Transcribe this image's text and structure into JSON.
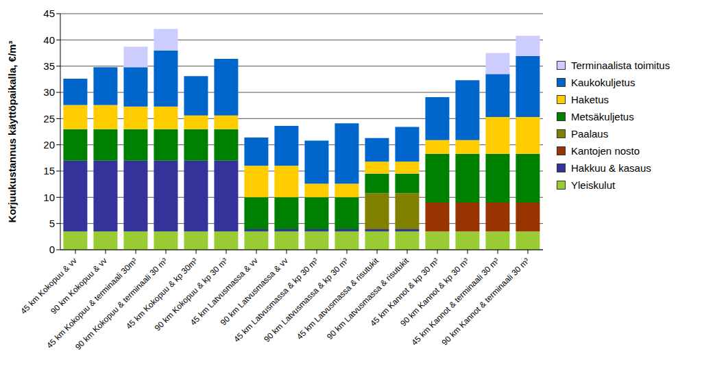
{
  "chart_data": {
    "type": "bar",
    "stacked": true,
    "grid": true,
    "legend": "right",
    "y_label": "Korjuukustannus käyttöpaikalla, €/m³",
    "categories": [
      "45 km Kokopuu & vv",
      "90 km Kokopuu & vv",
      "45 km Kokopuu & terminaali 30m³",
      "90 km Kokopuu & terminaali 30 m³",
      "45 km Kokopuu & kp 30m³",
      "90 km Kokopuu & kp 30 m³",
      "45 km Latvusmassa & vv",
      "90 km Latvusmassa & vv",
      "45 km Latvusmassa & kp 30 m³",
      "90 km Latvusmassa & kp 30 m³",
      "45 km Latvusmassa & risutukit",
      "90 km Latvusmassa & risutukit",
      "45 km Kannot & kp 30 m³",
      "90 km Kannot & kp 30 m³",
      "45 km Kannot & terminaali 30 m³",
      "90 km Kannot & terminaali 30 m³"
    ],
    "ylim": [
      0,
      45
    ],
    "yticks": [
      0,
      5,
      10,
      15,
      20,
      25,
      30,
      35,
      40,
      45
    ],
    "series": [
      {
        "name": "Yleiskulut",
        "color": "#99CC33",
        "values": [
          3.5,
          3.5,
          3.5,
          3.5,
          3.5,
          3.5,
          3.5,
          3.5,
          3.5,
          3.5,
          3.5,
          3.5,
          3.5,
          3.5,
          3.5,
          3.5
        ]
      },
      {
        "name": "Hakkuu & kasaus",
        "color": "#333399",
        "values": [
          13.5,
          13.5,
          13.5,
          13.5,
          13.5,
          13.5,
          0.4,
          0.4,
          0.4,
          0.4,
          0.4,
          0.4,
          0,
          0,
          0,
          0
        ]
      },
      {
        "name": "Kantojen nosto",
        "color": "#993300",
        "values": [
          0,
          0,
          0,
          0,
          0,
          0,
          0,
          0,
          0,
          0,
          0,
          0,
          5.5,
          5.5,
          5.5,
          5.5
        ]
      },
      {
        "name": "Paalaus",
        "color": "#808000",
        "values": [
          0,
          0,
          0,
          0,
          0,
          0,
          0,
          0,
          0,
          0,
          6.9,
          6.9,
          0,
          0,
          0,
          0
        ]
      },
      {
        "name": "Metsäkuljetus",
        "color": "#008000",
        "values": [
          6,
          6,
          6,
          6,
          6,
          6,
          6.1,
          6.1,
          6.1,
          6.1,
          3.7,
          3.7,
          9.3,
          9.3,
          9.3,
          9.3
        ]
      },
      {
        "name": "Haketus",
        "color": "#FFCC00",
        "values": [
          4.6,
          4.6,
          4.3,
          4.3,
          2.6,
          2.6,
          6,
          6,
          2.6,
          2.6,
          2.3,
          2.3,
          2.6,
          2.6,
          7,
          7
        ]
      },
      {
        "name": "Kaukokuljetus",
        "color": "#0066CC",
        "values": [
          5,
          7.2,
          7.5,
          10.7,
          7.5,
          10.8,
          5.4,
          7.6,
          8.2,
          11.5,
          4.5,
          6.6,
          8.2,
          11.4,
          8.2,
          11.6
        ]
      },
      {
        "name": "Terminaalista toimitus",
        "color": "#CCCCFF",
        "values": [
          0,
          0,
          3.9,
          4.1,
          0,
          0,
          0,
          0,
          0,
          0,
          0,
          0,
          0,
          0,
          4,
          3.9
        ]
      }
    ]
  }
}
